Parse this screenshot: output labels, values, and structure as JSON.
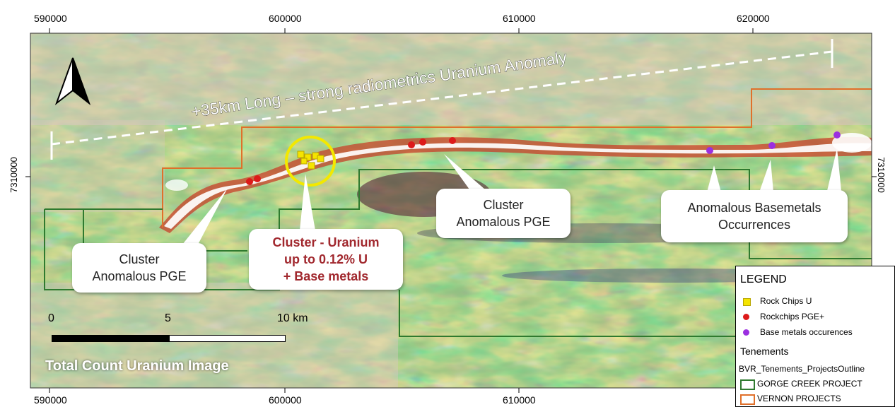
{
  "map": {
    "top_axis_labels": [
      "590000",
      "600000",
      "610000",
      "620000"
    ],
    "bottom_axis_labels": [
      "590000",
      "600000",
      "610000"
    ],
    "left_axis_label": "7310000",
    "right_axis_label": "7310000",
    "anomaly_label": "+35km Long – strong radiometrics Uranium Anomaly",
    "north_arrow": "north-arrow-icon",
    "image_title": "Total Count Uranium Image",
    "scale": {
      "labels": [
        "0",
        "5",
        "10 km"
      ]
    },
    "callouts": {
      "pge_left": [
        "Cluster",
        "Anomalous PGE"
      ],
      "uranium": [
        "Cluster - Uranium",
        "up to 0.12% U",
        "+ Base metals"
      ],
      "pge_right": [
        "Cluster",
        "Anomalous PGE"
      ],
      "basemetals": [
        "Anomalous Basemetals",
        "Occurrences"
      ]
    },
    "colors": {
      "rock_chips_u": "#f5e400",
      "rockchips_pge": "#dd1a1a",
      "base_metals": "#9b2fe0",
      "gorge_creek": "#2f7a2f",
      "vernon": "#e0702a",
      "uranium_circle": "#f3e800",
      "callout_red_text": "#a1282e"
    }
  },
  "legend": {
    "title": "LEGEND",
    "items": [
      {
        "label": "Rock Chips U",
        "symbol": "yellow-square-icon"
      },
      {
        "label": "Rockchips PGE+",
        "symbol": "red-dot-icon"
      },
      {
        "label": "Base metals occurences",
        "symbol": "purple-dot-icon"
      }
    ],
    "tenements_title": "Tenements",
    "layer_name": "BVR_Tenements_ProjectsOutline",
    "outlines": [
      {
        "label": "GORGE CREEK PROJECT"
      },
      {
        "label": "VERNON PROJECTS"
      }
    ]
  }
}
